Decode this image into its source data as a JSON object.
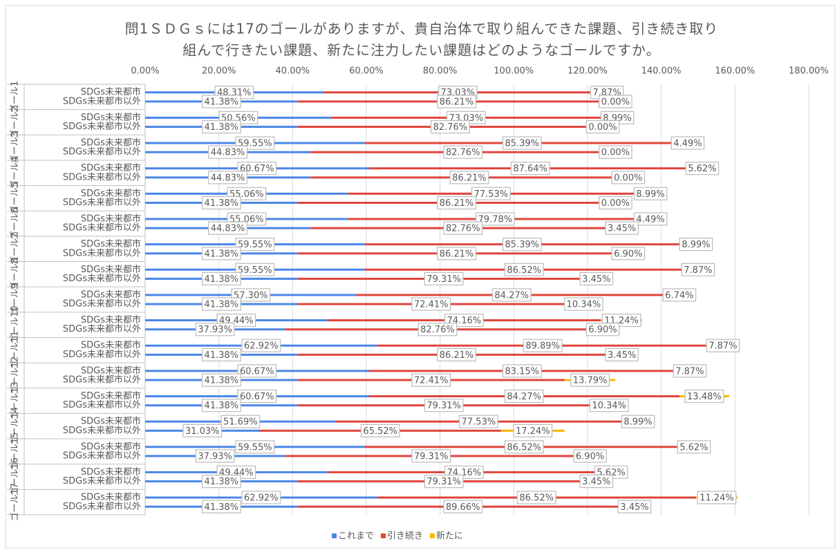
{
  "chart_data": {
    "type": "stacked-barh",
    "title": [
      "問1ＳＤＧｓには17のゴールがありますが、貴自治体で取り組んできた課題、引き続き取り",
      "組んで行きたい課題、新たに注力したい課題はどのようなゴールですか。"
    ],
    "groups": [
      "ゴール1",
      "ゴール2",
      "ゴール3",
      "ゴール4",
      "ゴール5",
      "ゴール6",
      "ゴール7",
      "ゴール8",
      "ゴール9",
      "ゴール10",
      "ゴール11",
      "ゴール12",
      "ゴール13",
      "ゴール14",
      "ゴール15",
      "ゴール16",
      "ゴール17"
    ],
    "categories": [
      "SDGs未来都市",
      "SDGs未来都市以外",
      "SDGs未来都市",
      "SDGs未来都市以外",
      "SDGs未来都市",
      "SDGs未来都市以外",
      "SDGs未来都市",
      "SDGs未来都市以外",
      "SDGs未来都市",
      "SDGs未来都市以外",
      "SDGs未来都市",
      "SDGs未来都市以外",
      "SDGs未来都市",
      "SDGs未来都市以外",
      "SDGs未来都市",
      "SDGs未来都市以外",
      "SDGs未来都市",
      "SDGs未来都市以外",
      "SDGs未来都市",
      "SDGs未来都市以外",
      "SDGs未来都市",
      "SDGs未来都市以外",
      "SDGs未来都市",
      "SDGs未来都市以外",
      "SDGs未来都市",
      "SDGs未来都市以外",
      "SDGs未来都市",
      "SDGs未来都市以外",
      "SDGs未来都市",
      "SDGs未来都市以外",
      "SDGs未来都市",
      "SDGs未来都市以外",
      "SDGs未来都市",
      "SDGs未来都市以外"
    ],
    "series": [
      {
        "name": "これまで",
        "color": "#4a86e8",
        "values": [
          48.31,
          41.38,
          50.56,
          41.38,
          59.55,
          44.83,
          60.67,
          44.83,
          55.06,
          41.38,
          55.06,
          44.83,
          59.55,
          41.38,
          59.55,
          41.38,
          57.3,
          41.38,
          49.44,
          37.93,
          62.92,
          41.38,
          60.67,
          41.38,
          60.67,
          41.38,
          51.69,
          31.03,
          59.55,
          37.93,
          49.44,
          41.38,
          62.92,
          41.38
        ],
        "value_labels": [
          "48.31%",
          "41.38%",
          "50.56%",
          "41.38%",
          "59.55%",
          "44.83%",
          "60.67%",
          "44.83%",
          "55.06%",
          "41.38%",
          "55.06%",
          "44.83%",
          "59.55%",
          "41.38%",
          "59.55%",
          "41.38%",
          "57.30%",
          "41.38%",
          "49.44%",
          "37.93%",
          "62.92%",
          "41.38%",
          "60.67%",
          "41.38%",
          "60.67%",
          "41.38%",
          "51.69%",
          "31.03%",
          "59.55%",
          "37.93%",
          "49.44%",
          "41.38%",
          "62.92%",
          "41.38%"
        ]
      },
      {
        "name": "引き続き",
        "color": "#e0443a",
        "values": [
          73.03,
          86.21,
          73.03,
          82.76,
          85.39,
          82.76,
          87.64,
          86.21,
          77.53,
          86.21,
          79.78,
          82.76,
          85.39,
          86.21,
          86.52,
          79.31,
          84.27,
          72.41,
          74.16,
          82.76,
          89.89,
          86.21,
          83.15,
          72.41,
          84.27,
          79.31,
          77.53,
          65.52,
          86.52,
          79.31,
          74.16,
          79.31,
          86.52,
          89.66
        ],
        "value_labels": [
          "73.03%",
          "86.21%",
          "73.03%",
          "82.76%",
          "85.39%",
          "82.76%",
          "87.64%",
          "86.21%",
          "77.53%",
          "86.21%",
          "79.78%",
          "82.76%",
          "85.39%",
          "86.21%",
          "86.52%",
          "79.31%",
          "84.27%",
          "72.41%",
          "74.16%",
          "82.76%",
          "89.89%",
          "86.21%",
          "83.15%",
          "72.41%",
          "84.27%",
          "79.31%",
          "77.53%",
          "65.52%",
          "86.52%",
          "79.31%",
          "74.16%",
          "79.31%",
          "86.52%",
          "89.66%"
        ]
      },
      {
        "name": "新たに",
        "color": "#f6b800",
        "values": [
          7.87,
          0.0,
          8.99,
          0.0,
          4.49,
          0.0,
          5.62,
          0.0,
          8.99,
          0.0,
          4.49,
          3.45,
          8.99,
          6.9,
          7.87,
          3.45,
          6.74,
          10.34,
          11.24,
          6.9,
          7.87,
          3.45,
          7.87,
          13.79,
          13.48,
          10.34,
          8.99,
          17.24,
          5.62,
          6.9,
          5.62,
          3.45,
          11.24,
          3.45
        ],
        "value_labels": [
          "7.87%",
          "0.00%",
          "8.99%",
          "0.00%",
          "4.49%",
          "0.00%",
          "5.62%",
          "0.00%",
          "8.99%",
          "0.00%",
          "4.49%",
          "3.45%",
          "8.99%",
          "6.90%",
          "7.87%",
          "3.45%",
          "6.74%",
          "10.34%",
          "11.24%",
          "6.90%",
          "7.87%",
          "3.45%",
          "7.87%",
          "13.79%",
          "13.48%",
          "10.34%",
          "8.99%",
          "17.24%",
          "5.62%",
          "6.90%",
          "5.62%",
          "3.45%",
          "11.24%",
          "3.45%"
        ]
      }
    ],
    "xlim": [
      0,
      180
    ],
    "xticks": [
      {
        "value": 0,
        "label": "0.00%"
      },
      {
        "value": 20,
        "label": "20.00%"
      },
      {
        "value": 40,
        "label": "40.00%"
      },
      {
        "value": 60,
        "label": "60.00%"
      },
      {
        "value": 80,
        "label": "80.00%"
      },
      {
        "value": 100,
        "label": "100.00%"
      },
      {
        "value": 120,
        "label": "120.00%"
      },
      {
        "value": 140,
        "label": "140.00%"
      },
      {
        "value": 160,
        "label": "160.00%"
      },
      {
        "value": 180,
        "label": "180.00%"
      }
    ],
    "grid": true,
    "legend": "bottom"
  }
}
